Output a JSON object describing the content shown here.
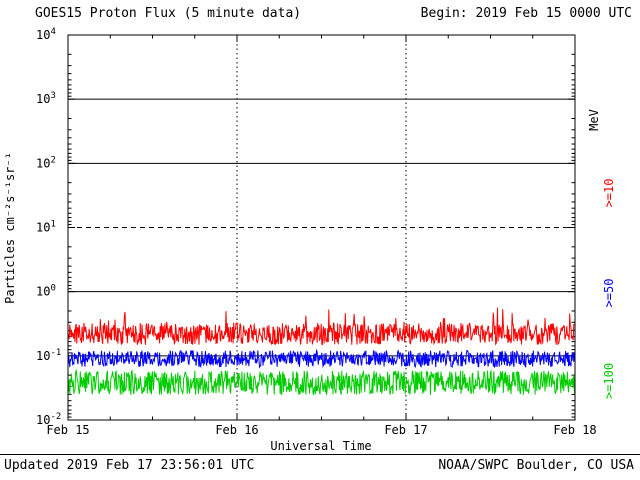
{
  "header": {
    "title": "GOES15 Proton Flux (5 minute data)",
    "begin": "Begin: 2019 Feb 15 0000 UTC"
  },
  "footer": {
    "updated": "Updated 2019 Feb 17 23:56:01 UTC",
    "source": "NOAA/SWPC Boulder, CO USA"
  },
  "right_labels": {
    "unit": "MeV",
    "thresholds": [
      {
        "label": ">=10",
        "color": "#ff0000"
      },
      {
        "label": ">=50",
        "color": "#0000ff"
      },
      {
        "label": ">=100",
        "color": "#00cc00"
      }
    ]
  },
  "chart_data": {
    "type": "line",
    "title": "GOES15 Proton Flux (5 minute data)",
    "xlabel": "Universal Time",
    "ylabel": "Particles cm⁻²s⁻¹sr⁻¹",
    "y_scale": "log",
    "ylim": [
      0.01,
      10000
    ],
    "y_tick_exponents": [
      4,
      3,
      2,
      1,
      0,
      -1,
      -2
    ],
    "x_tick_labels": [
      "Feb 15",
      "Feb 16",
      "Feb 17",
      "Feb 18"
    ],
    "x_start": "2019 Feb 15 0000 UTC",
    "x_range_days": 3,
    "samples_per_day": 288,
    "legend_position": "right",
    "gridlines": {
      "solid_exponents": [
        3,
        2,
        0,
        -1
      ],
      "dashed_exponents": [
        1
      ],
      "vertical_dotted_at_days": [
        1,
        2
      ]
    },
    "series": [
      {
        "name": "Protons >=10 MeV",
        "color": "#ff0000",
        "approx_level": 0.22,
        "approx_range": [
          0.13,
          0.45
        ],
        "noise_dex": 0.17,
        "spike_dex": 0.3
      },
      {
        "name": "Protons >=50 MeV",
        "color": "#0000ff",
        "approx_level": 0.09,
        "approx_range": [
          0.055,
          0.14
        ],
        "noise_dex": 0.13,
        "spike_dex": 0
      },
      {
        "name": "Protons >=100 MeV",
        "color": "#00cc00",
        "approx_level": 0.038,
        "approx_range": [
          0.022,
          0.06
        ],
        "noise_dex": 0.19,
        "spike_dex": 0
      }
    ]
  }
}
